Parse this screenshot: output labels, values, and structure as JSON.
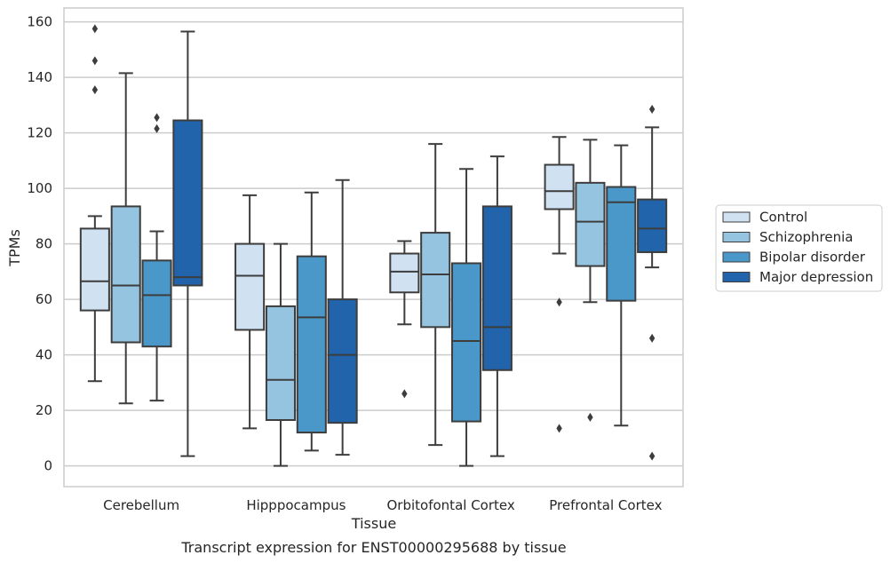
{
  "caption": "Transcript expression for ENST00000295688 by tissue",
  "chart_data": {
    "type": "box",
    "xlabel": "Tissue",
    "ylabel": "TPMs",
    "ylim": [
      -7.5,
      165
    ],
    "yticks": [
      0,
      20,
      40,
      60,
      80,
      100,
      120,
      140,
      160
    ],
    "grid": "horizontal",
    "legend_position": "right",
    "categories": [
      "Cerebellum",
      "Hipppocampus",
      "Orbitofontal Cortex",
      "Prefrontal Cortex"
    ],
    "series": [
      {
        "name": "Control",
        "color": "#d0e1f2",
        "boxes": [
          {
            "whisker_low": 30.5,
            "q1": 56,
            "median": 66.5,
            "q3": 85.5,
            "whisker_high": 90,
            "outliers": []
          },
          {
            "whisker_low": 13.5,
            "q1": 49,
            "median": 68.5,
            "q3": 80,
            "whisker_high": 97.5,
            "outliers": []
          },
          {
            "whisker_low": 51,
            "q1": 62.5,
            "median": 70,
            "q3": 76.5,
            "whisker_high": 81,
            "outliers": [
              26
            ]
          },
          {
            "whisker_low": 76.5,
            "q1": 92.5,
            "median": 99,
            "q3": 108.5,
            "whisker_high": 118.5,
            "outliers": [
              59,
              13.5
            ]
          }
        ]
      },
      {
        "name": "Schizophrenia",
        "color": "#94c4df",
        "boxes": [
          {
            "whisker_low": 22.5,
            "q1": 44.5,
            "median": 65,
            "q3": 93.5,
            "whisker_high": 141.5,
            "outliers": []
          },
          {
            "whisker_low": 0,
            "q1": 16.5,
            "median": 31,
            "q3": 57.5,
            "whisker_high": 80,
            "outliers": []
          },
          {
            "whisker_low": 7.5,
            "q1": 50,
            "median": 69,
            "q3": 84,
            "whisker_high": 116,
            "outliers": []
          },
          {
            "whisker_low": 59,
            "q1": 72,
            "median": 88,
            "q3": 102,
            "whisker_high": 117.5,
            "outliers": [
              17.5
            ]
          }
        ]
      },
      {
        "name": "Bipolar disorder",
        "color": "#4a98c9",
        "boxes": [
          {
            "whisker_low": 23.5,
            "q1": 43,
            "median": 61.5,
            "q3": 74,
            "whisker_high": 84.5,
            "outliers": [
              125.5,
              121.5
            ]
          },
          {
            "whisker_low": 5.5,
            "q1": 12,
            "median": 53.5,
            "q3": 75.5,
            "whisker_high": 98.5,
            "outliers": []
          },
          {
            "whisker_low": 0,
            "q1": 16,
            "median": 45,
            "q3": 73,
            "whisker_high": 107,
            "outliers": []
          },
          {
            "whisker_low": 14.5,
            "q1": 59.5,
            "median": 95,
            "q3": 100.5,
            "whisker_high": 115.5,
            "outliers": []
          }
        ]
      },
      {
        "name": "Major depression",
        "color": "#2164ab",
        "boxes": [
          {
            "whisker_low": 3.5,
            "q1": 65,
            "median": 68,
            "q3": 124.5,
            "whisker_high": 156.5,
            "outliers": []
          },
          {
            "whisker_low": 4,
            "q1": 15.5,
            "median": 40,
            "q3": 60,
            "whisker_high": 103,
            "outliers": []
          },
          {
            "whisker_low": 3.5,
            "q1": 34.5,
            "median": 50,
            "q3": 93.5,
            "whisker_high": 111.5,
            "outliers": []
          },
          {
            "whisker_low": 71.5,
            "q1": 77,
            "median": 85.5,
            "q3": 96,
            "whisker_high": 122,
            "outliers": [
              128.5,
              46,
              3.5
            ]
          }
        ]
      }
    ],
    "extra_outliers": [
      {
        "series": 0,
        "category": 0,
        "values": [
          157.5,
          146,
          135.5
        ]
      }
    ]
  }
}
